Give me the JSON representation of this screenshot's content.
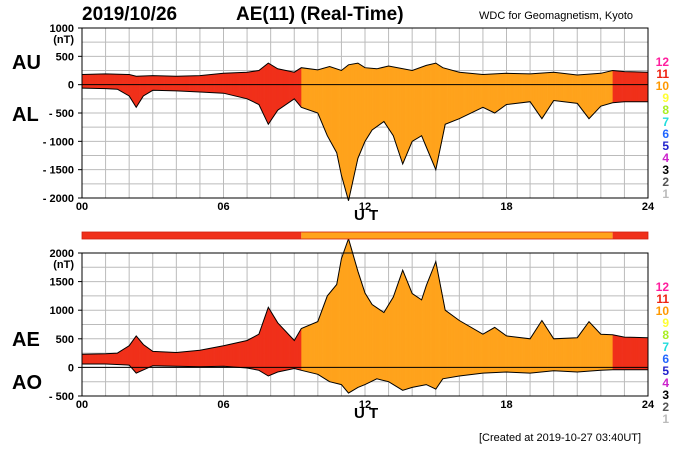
{
  "header": {
    "date": "2019/10/26",
    "title": "AE(11) (Real-Time)",
    "source": "WDC for Geomagnetism, Kyoto",
    "created": "[Created at 2019-10-27 03:40UT]"
  },
  "labels": {
    "au": "AU",
    "al": "AL",
    "ae": "AE",
    "ao": "AO",
    "ut": "U T"
  },
  "colors": {
    "early_segment": "#f0301a",
    "late_segment": "#ffa31c",
    "grid": "#bbbbbb",
    "curve": "#000000"
  },
  "station_legend": [
    {
      "label": "12",
      "color": "#ff1e9e"
    },
    {
      "label": "11",
      "color": "#ee2211"
    },
    {
      "label": "10",
      "color": "#ff9900"
    },
    {
      "label": "9",
      "color": "#ffff33"
    },
    {
      "label": "8",
      "color": "#aaee22"
    },
    {
      "label": "7",
      "color": "#22dddd"
    },
    {
      "label": "6",
      "color": "#2266ff"
    },
    {
      "label": "5",
      "color": "#2222cc"
    },
    {
      "label": "4",
      "color": "#cc22cc"
    },
    {
      "label": "3",
      "color": "#000000"
    },
    {
      "label": "2",
      "color": "#555555"
    },
    {
      "label": "1",
      "color": "#bbbbbb"
    }
  ],
  "station_bar": [
    {
      "from": 0,
      "to": 9.3,
      "color": "#f0301a"
    },
    {
      "from": 9.3,
      "to": 22.5,
      "color": "#ffa31c"
    },
    {
      "from": 22.5,
      "to": 24,
      "color": "#f0301a"
    }
  ],
  "chart_data": [
    {
      "type": "area",
      "title": "AU / AL",
      "xlabel": "U T",
      "ylabel": "(nT)",
      "xlim": [
        0,
        24
      ],
      "ylim": [
        -2000,
        1000
      ],
      "xticks": [
        "00",
        "06",
        "12",
        "18",
        "24"
      ],
      "yticks": [
        "1000",
        "500",
        "0",
        "- 500",
        "- 1000",
        "- 1500",
        "- 2000"
      ],
      "unit": "(nT)",
      "series": [
        {
          "name": "AU",
          "x": [
            0,
            1,
            2,
            2.3,
            3,
            4,
            5,
            6,
            7,
            7.5,
            7.9,
            8.3,
            9,
            9.3,
            10,
            10.5,
            11,
            11.3,
            11.7,
            12,
            12.5,
            13,
            14,
            14.6,
            15,
            15.3,
            16,
            17,
            18,
            19,
            20,
            21,
            22,
            22.5,
            23,
            24
          ],
          "values": [
            180,
            190,
            180,
            150,
            160,
            150,
            160,
            200,
            220,
            250,
            380,
            280,
            220,
            300,
            260,
            320,
            250,
            350,
            380,
            300,
            280,
            330,
            250,
            340,
            380,
            300,
            220,
            180,
            200,
            190,
            220,
            170,
            200,
            250,
            230,
            220
          ]
        },
        {
          "name": "AL",
          "x": [
            0,
            1,
            1.5,
            2,
            2.3,
            2.6,
            3,
            4,
            5,
            6,
            7,
            7.5,
            7.9,
            8.3,
            9,
            9.3,
            10,
            10.4,
            10.8,
            11,
            11.3,
            11.7,
            12,
            12.3,
            12.8,
            13.2,
            13.6,
            14,
            14.4,
            14.6,
            15,
            15.4,
            16,
            17,
            17.5,
            18,
            19,
            19.5,
            20,
            21,
            21.5,
            22,
            22.5,
            23,
            24
          ],
          "values": [
            -60,
            -70,
            -80,
            -200,
            -400,
            -200,
            -100,
            -110,
            -130,
            -150,
            -250,
            -350,
            -700,
            -450,
            -250,
            -400,
            -500,
            -900,
            -1200,
            -1600,
            -2050,
            -1300,
            -1000,
            -800,
            -650,
            -900,
            -1400,
            -1000,
            -900,
            -1100,
            -1500,
            -700,
            -600,
            -400,
            -500,
            -350,
            -300,
            -600,
            -280,
            -330,
            -600,
            -380,
            -320,
            -300,
            -300
          ]
        }
      ]
    },
    {
      "type": "area",
      "title": "AE / AO",
      "xlabel": "U T",
      "ylabel": "(nT)",
      "xlim": [
        0,
        24
      ],
      "ylim": [
        -500,
        2000
      ],
      "xticks": [
        "00",
        "06",
        "12",
        "18",
        "24"
      ],
      "yticks": [
        "2000",
        "1500",
        "1000",
        "500",
        "0",
        "- 500"
      ],
      "unit": "(nT)",
      "series": [
        {
          "name": "AE",
          "x": [
            0,
            1,
            1.5,
            2,
            2.3,
            2.6,
            3,
            4,
            5,
            6,
            7,
            7.5,
            7.9,
            8.3,
            9,
            9.3,
            10,
            10.4,
            10.8,
            11,
            11.3,
            11.7,
            12,
            12.3,
            12.8,
            13.2,
            13.6,
            14,
            14.4,
            14.6,
            15,
            15.4,
            16,
            17,
            17.5,
            18,
            19,
            19.5,
            20,
            21,
            21.5,
            22,
            22.5,
            23,
            24
          ],
          "values": [
            230,
            240,
            250,
            380,
            550,
            400,
            280,
            260,
            300,
            380,
            470,
            580,
            1050,
            780,
            470,
            680,
            800,
            1250,
            1450,
            1900,
            2250,
            1680,
            1300,
            1100,
            960,
            1230,
            1700,
            1290,
            1180,
            1430,
            1850,
            1000,
            820,
            580,
            700,
            550,
            500,
            820,
            500,
            520,
            800,
            580,
            570,
            530,
            520
          ]
        },
        {
          "name": "AO",
          "x": [
            0,
            1,
            2,
            2.3,
            3,
            4,
            5,
            6,
            7,
            7.5,
            7.9,
            8.3,
            9,
            9.3,
            10,
            10.5,
            11,
            11.3,
            11.7,
            12,
            12.5,
            13,
            13.6,
            14,
            14.6,
            15,
            15.3,
            16,
            17,
            18,
            19,
            20,
            21,
            22,
            22.5,
            23,
            24
          ],
          "values": [
            60,
            60,
            40,
            -100,
            30,
            20,
            10,
            20,
            -10,
            -50,
            -150,
            -80,
            -20,
            -50,
            -120,
            -250,
            -300,
            -450,
            -350,
            -300,
            -200,
            -250,
            -400,
            -350,
            -300,
            -380,
            -200,
            -150,
            -100,
            -80,
            -100,
            -60,
            -80,
            -50,
            -40,
            -40,
            -40
          ]
        }
      ]
    }
  ]
}
